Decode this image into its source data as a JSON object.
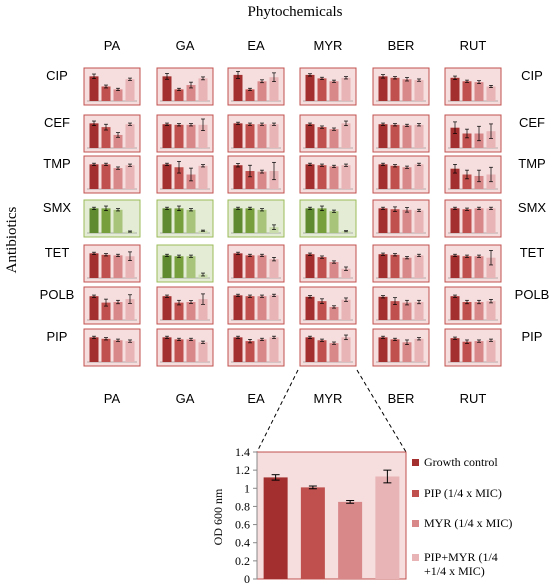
{
  "title": "Phytochemicals",
  "ylabel": "Antibiotics",
  "phytochemicals": [
    "PA",
    "GA",
    "EA",
    "MYR",
    "BER",
    "RUT"
  ],
  "antibiotics": [
    "CIP",
    "CEF",
    "TMP",
    "SMX",
    "TET",
    "POLB",
    "PIP"
  ],
  "colors": {
    "red_panel_bg": "#f6dede",
    "red_panel_border": "#c0504d",
    "green_panel_bg": "#e4ecd6",
    "green_panel_border": "#9bbb59",
    "red_bars": [
      "#a3302e",
      "#c0504d",
      "#d9888a",
      "#e8b4b6"
    ],
    "green_bars": [
      "#5f8a2f",
      "#77a03d",
      "#a7c47a",
      "#c9dbab"
    ]
  },
  "chart_data": [
    {
      "type": "bar",
      "title": "Phytochemicals",
      "ylabel": "Antibiotics",
      "rows": [
        "CIP",
        "CEF",
        "TMP",
        "SMX",
        "TET",
        "POLB",
        "PIP"
      ],
      "columns": [
        "PA",
        "GA",
        "EA",
        "MYR",
        "BER",
        "RUT"
      ],
      "synergy_panels": [
        [
          "SMX",
          "PA"
        ],
        [
          "SMX",
          "GA"
        ],
        [
          "SMX",
          "EA"
        ],
        [
          "SMX",
          "MYR"
        ],
        [
          "TET",
          "GA"
        ]
      ],
      "panels": [
        [
          {
            "values": [
              0.85,
              0.5,
              0.4,
              0.75
            ],
            "errors": [
              0.08,
              0.05,
              0.04,
              0.04
            ]
          },
          {
            "values": [
              0.85,
              0.4,
              0.55,
              0.78
            ],
            "errors": [
              0.1,
              0.04,
              0.1,
              0.05
            ]
          },
          {
            "values": [
              0.9,
              0.4,
              0.68,
              0.82
            ],
            "errors": [
              0.12,
              0.04,
              0.05,
              0.15
            ]
          },
          {
            "values": [
              0.9,
              0.78,
              0.68,
              0.8
            ],
            "errors": [
              0.04,
              0.04,
              0.04,
              0.04
            ]
          },
          {
            "values": [
              0.85,
              0.8,
              0.75,
              0.72
            ],
            "errors": [
              0.06,
              0.04,
              0.06,
              0.04
            ]
          },
          {
            "values": [
              0.8,
              0.68,
              0.65,
              0.5
            ],
            "errors": [
              0.06,
              0.04,
              0.05,
              0.04
            ]
          }
        ],
        [
          {
            "values": [
              0.85,
              0.72,
              0.45,
              0.82
            ],
            "errors": [
              0.08,
              0.1,
              0.08,
              0.04
            ]
          },
          {
            "values": [
              0.82,
              0.8,
              0.8,
              0.8
            ],
            "errors": [
              0.04,
              0.04,
              0.04,
              0.2
            ]
          },
          {
            "values": [
              0.85,
              0.82,
              0.82,
              0.82
            ],
            "errors": [
              0.04,
              0.04,
              0.04,
              0.04
            ]
          },
          {
            "values": [
              0.82,
              0.72,
              0.65,
              0.85
            ],
            "errors": [
              0.04,
              0.04,
              0.04,
              0.08
            ]
          },
          {
            "values": [
              0.82,
              0.8,
              0.78,
              0.8
            ],
            "errors": [
              0.04,
              0.04,
              0.04,
              0.04
            ]
          },
          {
            "values": [
              0.7,
              0.5,
              0.5,
              0.58
            ],
            "errors": [
              0.2,
              0.15,
              0.25,
              0.25
            ]
          }
        ],
        [
          {
            "values": [
              0.85,
              0.85,
              0.72,
              0.82
            ],
            "errors": [
              0.04,
              0.04,
              0.04,
              0.04
            ]
          },
          {
            "values": [
              0.85,
              0.75,
              0.5,
              0.8
            ],
            "errors": [
              0.04,
              0.2,
              0.22,
              0.04
            ]
          },
          {
            "values": [
              0.82,
              0.62,
              0.6,
              0.62
            ],
            "errors": [
              0.06,
              0.2,
              0.05,
              0.3
            ]
          },
          {
            "values": [
              0.85,
              0.82,
              0.78,
              0.82
            ],
            "errors": [
              0.04,
              0.04,
              0.04,
              0.04
            ]
          },
          {
            "values": [
              0.85,
              0.8,
              0.75,
              0.85
            ],
            "errors": [
              0.04,
              0.04,
              0.04,
              0.04
            ]
          },
          {
            "values": [
              0.7,
              0.5,
              0.45,
              0.5
            ],
            "errors": [
              0.15,
              0.15,
              0.2,
              0.25
            ]
          }
        ],
        [
          {
            "values": [
              0.85,
              0.85,
              0.8,
              0.05
            ],
            "errors": [
              0.04,
              0.08,
              0.04,
              0.02
            ]
          },
          {
            "values": [
              0.85,
              0.85,
              0.8,
              0.08
            ],
            "errors": [
              0.04,
              0.08,
              0.04,
              0.02
            ]
          },
          {
            "values": [
              0.85,
              0.85,
              0.8,
              0.2
            ],
            "errors": [
              0.04,
              0.04,
              0.04,
              0.08
            ]
          },
          {
            "values": [
              0.85,
              0.85,
              0.75,
              0.06
            ],
            "errors": [
              0.04,
              0.08,
              0.04,
              0.02
            ]
          },
          {
            "values": [
              0.85,
              0.82,
              0.8,
              0.78
            ],
            "errors": [
              0.04,
              0.08,
              0.08,
              0.04
            ]
          },
          {
            "values": [
              0.85,
              0.82,
              0.85,
              0.85
            ],
            "errors": [
              0.04,
              0.04,
              0.04,
              0.04
            ]
          }
        ],
        [
          {
            "values": [
              0.85,
              0.8,
              0.78,
              0.75
            ],
            "errors": [
              0.04,
              0.04,
              0.04,
              0.15
            ]
          },
          {
            "values": [
              0.78,
              0.75,
              0.75,
              0.12
            ],
            "errors": [
              0.04,
              0.04,
              0.04,
              0.05
            ]
          },
          {
            "values": [
              0.85,
              0.78,
              0.78,
              0.65
            ],
            "errors": [
              0.04,
              0.04,
              0.04,
              0.06
            ]
          },
          {
            "values": [
              0.82,
              0.72,
              0.55,
              0.32
            ],
            "errors": [
              0.04,
              0.04,
              0.04,
              0.06
            ]
          },
          {
            "values": [
              0.82,
              0.8,
              0.7,
              0.78
            ],
            "errors": [
              0.04,
              0.04,
              0.04,
              0.04
            ]
          },
          {
            "values": [
              0.78,
              0.75,
              0.75,
              0.7
            ],
            "errors": [
              0.04,
              0.04,
              0.04,
              0.25
            ]
          }
        ],
        [
          {
            "values": [
              0.82,
              0.6,
              0.62,
              0.72
            ],
            "errors": [
              0.04,
              0.12,
              0.06,
              0.15
            ]
          },
          {
            "values": [
              0.82,
              0.6,
              0.62,
              0.72
            ],
            "errors": [
              0.04,
              0.08,
              0.05,
              0.18
            ]
          },
          {
            "values": [
              0.85,
              0.82,
              0.82,
              0.85
            ],
            "errors": [
              0.04,
              0.04,
              0.04,
              0.04
            ]
          },
          {
            "values": [
              0.8,
              0.65,
              0.45,
              0.7
            ],
            "errors": [
              0.04,
              0.08,
              0.04,
              0.06
            ]
          },
          {
            "values": [
              0.8,
              0.65,
              0.6,
              0.62
            ],
            "errors": [
              0.04,
              0.12,
              0.08,
              0.06
            ]
          },
          {
            "values": [
              0.82,
              0.62,
              0.62,
              0.65
            ],
            "errors": [
              0.04,
              0.06,
              0.06,
              0.06
            ]
          }
        ],
        [
          {
            "values": [
              0.85,
              0.8,
              0.75,
              0.72
            ],
            "errors": [
              0.04,
              0.04,
              0.04,
              0.04
            ]
          },
          {
            "values": [
              0.85,
              0.78,
              0.78,
              0.68
            ],
            "errors": [
              0.04,
              0.04,
              0.04,
              0.04
            ]
          },
          {
            "values": [
              0.85,
              0.72,
              0.78,
              0.85
            ],
            "errors": [
              0.04,
              0.06,
              0.04,
              0.04
            ]
          },
          {
            "values": [
              0.85,
              0.75,
              0.65,
              0.85
            ],
            "errors": [
              0.04,
              0.04,
              0.04,
              0.08
            ]
          },
          {
            "values": [
              0.85,
              0.78,
              0.68,
              0.8
            ],
            "errors": [
              0.04,
              0.04,
              0.08,
              0.04
            ]
          },
          {
            "values": [
              0.82,
              0.7,
              0.72,
              0.75
            ],
            "errors": [
              0.04,
              0.06,
              0.04,
              0.04
            ]
          }
        ]
      ]
    },
    {
      "type": "bar",
      "title": "",
      "xlabel": "",
      "ylabel": "OD 600 nm",
      "ylim": [
        0,
        1.4
      ],
      "yticks": [
        "0",
        "0.2",
        "0.4",
        "0.6",
        "0.8",
        "1",
        "1.2",
        "1.4"
      ],
      "categories": [
        "Growth control",
        "PIP (1/4 x MIC)",
        "MYR (1/4 x MIC)",
        "PIP+MYR (1/4 +1/4 x MIC)"
      ],
      "values": [
        1.12,
        1.01,
        0.85,
        1.13
      ],
      "errors": [
        0.03,
        0.015,
        0.015,
        0.07
      ],
      "legend": [
        {
          "label": "Growth control"
        },
        {
          "label": "PIP (1/4 x MIC)"
        },
        {
          "label": "MYR (1/4 x MIC)"
        },
        {
          "label": "PIP+MYR (1/4",
          "label2": "+1/4 x MIC)"
        }
      ]
    }
  ]
}
